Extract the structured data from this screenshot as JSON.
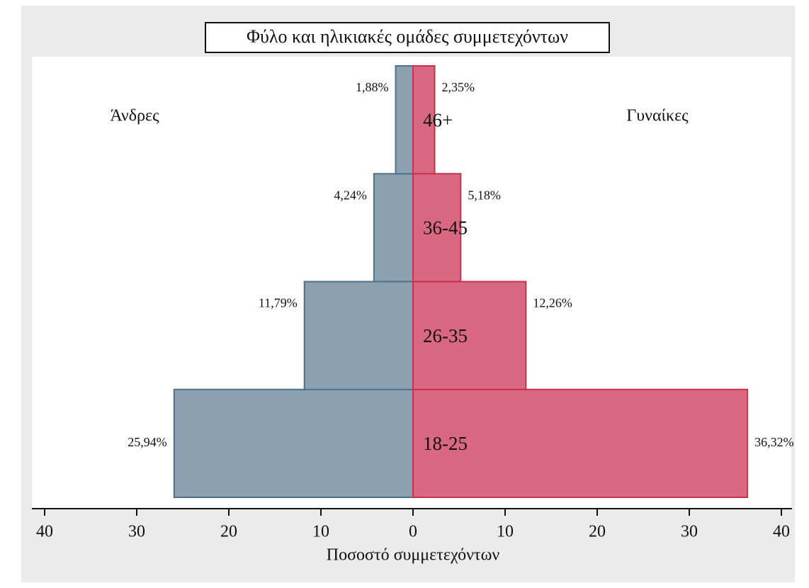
{
  "chart_data": {
    "type": "pyramid",
    "title": "Φύλο και ηλικιακές ομάδες συμμετεχόντων",
    "x_label": "Ποσοστό συμμετεχόντων",
    "categories": [
      "18-25",
      "26-35",
      "36-45",
      "46+"
    ],
    "series": [
      {
        "name": "Άνδρες",
        "color": "#8ba1b1",
        "side": "left",
        "values": [
          25.94,
          11.79,
          4.24,
          1.88
        ],
        "value_labels": [
          "25,94%",
          "11,79%",
          "4,24%",
          "1,88%"
        ]
      },
      {
        "name": "Γυναίκες",
        "color": "#db6883",
        "side": "right",
        "values": [
          36.32,
          12.26,
          5.18,
          2.35
        ],
        "value_labels": [
          "36,32%",
          "12,26%",
          "5,18%",
          "2,35%"
        ]
      }
    ],
    "xlim": [
      -40,
      40
    ],
    "xticks": [
      {
        "value": -40,
        "label": "40"
      },
      {
        "value": -30,
        "label": "30"
      },
      {
        "value": -20,
        "label": "20"
      },
      {
        "value": -10,
        "label": "10"
      },
      0,
      10,
      20,
      30,
      40
    ]
  }
}
